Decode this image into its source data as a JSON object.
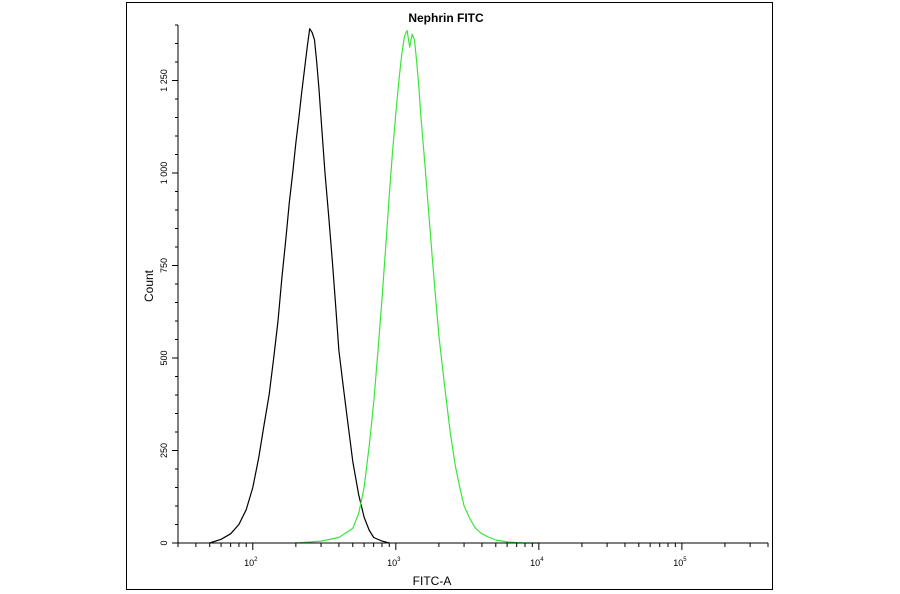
{
  "chart_data": {
    "type": "area",
    "title": "Nephrin FITC",
    "xlabel": "FITC-A",
    "ylabel": "Count",
    "x_scale": "log",
    "xlim": [
      30,
      400000
    ],
    "ylim": [
      0,
      1400
    ],
    "x_ticks": [
      {
        "value": 100,
        "base": "10",
        "exp": "2"
      },
      {
        "value": 1000,
        "base": "10",
        "exp": "3"
      },
      {
        "value": 10000,
        "base": "10",
        "exp": "4"
      },
      {
        "value": 100000,
        "base": "10",
        "exp": "5"
      }
    ],
    "y_ticks": [
      {
        "value": 0,
        "label": "0"
      },
      {
        "value": 250,
        "label": "250"
      },
      {
        "value": 500,
        "label": "500"
      },
      {
        "value": 750,
        "label": "750"
      },
      {
        "value": 1000,
        "label": "1 000"
      },
      {
        "value": 1250,
        "label": "1 250"
      }
    ],
    "grid": false,
    "series": [
      {
        "color": "#000000",
        "x": [
          50,
          60,
          70,
          80,
          90,
          100,
          110,
          120,
          130,
          140,
          150,
          160,
          170,
          180,
          190,
          200,
          210,
          220,
          230,
          240,
          250,
          260,
          270,
          280,
          290,
          300,
          320,
          340,
          360,
          380,
          400,
          430,
          460,
          500,
          550,
          600,
          650,
          700,
          800,
          900
        ],
        "y": [
          0,
          10,
          25,
          50,
          90,
          150,
          230,
          320,
          400,
          500,
          600,
          720,
          820,
          920,
          1000,
          1080,
          1150,
          1220,
          1280,
          1340,
          1390,
          1380,
          1360,
          1300,
          1230,
          1150,
          1000,
          880,
          760,
          640,
          520,
          420,
          330,
          220,
          130,
          70,
          35,
          15,
          5,
          0
        ]
      },
      {
        "color": "#39e639",
        "x": [
          200,
          300,
          400,
          500,
          550,
          600,
          650,
          700,
          750,
          800,
          850,
          900,
          950,
          1000,
          1050,
          1100,
          1150,
          1200,
          1250,
          1300,
          1350,
          1400,
          1450,
          1500,
          1600,
          1700,
          1800,
          1900,
          2000,
          2200,
          2400,
          2600,
          2800,
          3000,
          3300,
          3600,
          4000,
          4500,
          5000,
          6000,
          7000,
          8000,
          10000
        ],
        "y": [
          0,
          5,
          15,
          40,
          80,
          150,
          260,
          380,
          520,
          660,
          800,
          940,
          1060,
          1160,
          1250,
          1320,
          1370,
          1385,
          1340,
          1375,
          1360,
          1300,
          1230,
          1150,
          1020,
          890,
          770,
          660,
          560,
          420,
          300,
          210,
          150,
          100,
          65,
          40,
          25,
          15,
          8,
          3,
          1,
          0,
          0
        ]
      }
    ]
  }
}
